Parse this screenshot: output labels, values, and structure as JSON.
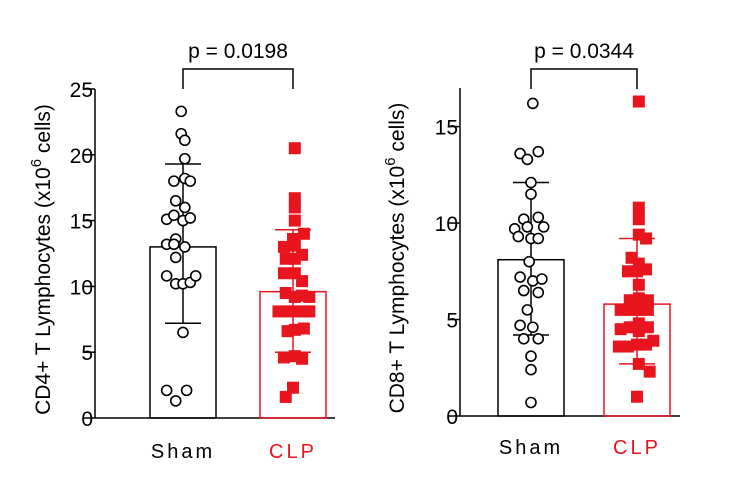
{
  "chart_data": [
    {
      "type": "bar",
      "ylabel": "CD4+ T Lymphocytes (x10",
      "ylabel_sup": "6",
      "ylabel_tail": " cells)",
      "ylim": [
        0,
        25
      ],
      "yticks": [
        0,
        5,
        10,
        15,
        20,
        25
      ],
      "categories": [
        "Sham",
        "CLP"
      ],
      "category_colors": [
        "#000000",
        "#e8141e"
      ],
      "means": [
        13.0,
        9.6
      ],
      "sd_upper": [
        19.3,
        14.3
      ],
      "sd_lower": [
        7.2,
        5.0
      ],
      "points": [
        [
          [
            -0.55,
            23.3
          ],
          [
            -0.55,
            21.6
          ],
          [
            -0.45,
            21.1
          ],
          [
            -0.45,
            19.7
          ],
          [
            -0.75,
            18.0
          ],
          [
            -0.45,
            18.2
          ],
          [
            -0.3,
            18.0
          ],
          [
            -0.7,
            16.5
          ],
          [
            -0.45,
            16.0
          ],
          [
            -0.95,
            15.1
          ],
          [
            -0.75,
            15.4
          ],
          [
            -0.5,
            15.0
          ],
          [
            -0.3,
            15.2
          ],
          [
            -0.7,
            13.6
          ],
          [
            -0.95,
            13.2
          ],
          [
            -0.75,
            13.2
          ],
          [
            -0.45,
            13.0
          ],
          [
            -0.7,
            12.2
          ],
          [
            -0.95,
            10.8
          ],
          [
            -0.7,
            10.2
          ],
          [
            -0.5,
            10.2
          ],
          [
            -0.3,
            10.3
          ],
          [
            -0.15,
            10.8
          ],
          [
            -0.5,
            6.5
          ],
          [
            -0.95,
            2.1
          ],
          [
            -0.4,
            2.1
          ],
          [
            -0.7,
            1.3
          ]
        ],
        [
          [
            0.55,
            20.5
          ],
          [
            0.55,
            16.7
          ],
          [
            0.55,
            16.0
          ],
          [
            0.55,
            15.0
          ],
          [
            0.5,
            13.6
          ],
          [
            0.25,
            13.0
          ],
          [
            0.55,
            13.1
          ],
          [
            0.8,
            14.0
          ],
          [
            0.3,
            12.1
          ],
          [
            0.55,
            12.1
          ],
          [
            0.75,
            12.4
          ],
          [
            0.25,
            11.0
          ],
          [
            0.55,
            11.0
          ],
          [
            0.75,
            10.4
          ],
          [
            0.3,
            9.5
          ],
          [
            0.55,
            9.2
          ],
          [
            0.75,
            9.3
          ],
          [
            0.95,
            9.2
          ],
          [
            0.1,
            8.1
          ],
          [
            0.35,
            8.1
          ],
          [
            0.55,
            8.1
          ],
          [
            0.8,
            8.1
          ],
          [
            0.95,
            8.1
          ],
          [
            0.35,
            6.6
          ],
          [
            0.55,
            6.7
          ],
          [
            0.8,
            6.8
          ],
          [
            0.25,
            4.6
          ],
          [
            0.55,
            4.7
          ],
          [
            0.75,
            4.5
          ],
          [
            0.5,
            2.3
          ],
          [
            0.3,
            1.6
          ]
        ]
      ],
      "annotation": "p = 0.0198"
    },
    {
      "type": "bar",
      "ylabel": "CD8+ T Lymphocytes (x10",
      "ylabel_sup": "6",
      "ylabel_tail": " cells)",
      "ylim": [
        0,
        17
      ],
      "yticks": [
        0,
        5,
        10,
        15
      ],
      "categories": [
        "Sham",
        "CLP"
      ],
      "category_colors": [
        "#000000",
        "#e8141e"
      ],
      "means": [
        8.1,
        5.8
      ],
      "sd_upper": [
        12.1,
        9.2
      ],
      "sd_lower": [
        4.2,
        2.7
      ],
      "points": [
        [
          [
            -0.45,
            16.2
          ],
          [
            -0.8,
            13.6
          ],
          [
            -0.3,
            13.7
          ],
          [
            -0.6,
            13.3
          ],
          [
            -0.5,
            12.1
          ],
          [
            -0.5,
            11.5
          ],
          [
            -0.7,
            10.2
          ],
          [
            -0.3,
            10.3
          ],
          [
            -0.95,
            9.7
          ],
          [
            -0.6,
            9.8
          ],
          [
            -0.15,
            9.8
          ],
          [
            -0.85,
            9.3
          ],
          [
            -0.5,
            9.2
          ],
          [
            -0.3,
            9.2
          ],
          [
            -0.55,
            8.0
          ],
          [
            -0.8,
            7.2
          ],
          [
            -0.45,
            7.0
          ],
          [
            -0.2,
            7.1
          ],
          [
            -0.7,
            6.5
          ],
          [
            -0.3,
            6.4
          ],
          [
            -0.6,
            5.5
          ],
          [
            -0.8,
            4.7
          ],
          [
            -0.45,
            4.6
          ],
          [
            -0.7,
            4.0
          ],
          [
            -0.3,
            4.0
          ],
          [
            -0.5,
            3.1
          ],
          [
            -0.5,
            2.4
          ],
          [
            -0.5,
            0.7
          ]
        ],
        [
          [
            0.55,
            16.3
          ],
          [
            0.55,
            10.8
          ],
          [
            0.55,
            10.2
          ],
          [
            0.55,
            9.4
          ],
          [
            0.75,
            9.2
          ],
          [
            0.35,
            8.2
          ],
          [
            0.55,
            7.9
          ],
          [
            0.25,
            7.5
          ],
          [
            0.5,
            7.5
          ],
          [
            0.75,
            7.6
          ],
          [
            0.55,
            6.8
          ],
          [
            0.3,
            6.0
          ],
          [
            0.55,
            6.1
          ],
          [
            0.8,
            6.0
          ],
          [
            0.05,
            5.5
          ],
          [
            0.3,
            5.5
          ],
          [
            0.55,
            5.5
          ],
          [
            0.8,
            5.5
          ],
          [
            0.55,
            4.8
          ],
          [
            0.05,
            4.5
          ],
          [
            0.3,
            4.6
          ],
          [
            0.55,
            4.4
          ],
          [
            0.8,
            4.6
          ],
          [
            0.0,
            3.6
          ],
          [
            0.25,
            3.6
          ],
          [
            0.5,
            3.7
          ],
          [
            0.75,
            3.7
          ],
          [
            0.95,
            3.9
          ],
          [
            0.55,
            2.7
          ],
          [
            0.85,
            2.3
          ],
          [
            0.5,
            1.0
          ]
        ]
      ],
      "annotation": "p = 0.0344"
    }
  ]
}
